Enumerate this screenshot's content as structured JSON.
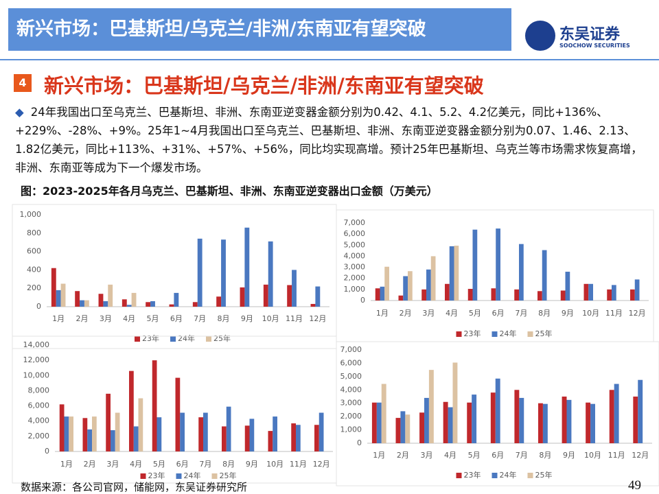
{
  "header": {
    "title": "新兴市场：巴基斯坦/乌克兰/非洲/东南亚有望突破",
    "logo_cn": "东吴证券",
    "logo_en": "SOOCHOW SECURITIES"
  },
  "section": {
    "number": "4",
    "title": "新兴市场：巴基斯坦/乌克兰/非洲/东南亚有望突破"
  },
  "bullet": "24年我国出口至乌克兰、巴基斯坦、非洲、东南亚逆变器金额分别为0.42、4.1、5.2、4.2亿美元，同比+136%、+229%、-28%、+9%。25年1~4月我国出口至乌克兰、巴基斯坦、非洲、东南亚逆变器金额分别为0.07、1.46、2.13、1.82亿美元，同比+113%、+31%、+57%、+56%，同比均实现高增。预计25年巴基斯坦、乌克兰等市场需求恢复高增，非洲、东南亚等成为下一个爆发市场。",
  "figure_caption": "图：2023-2025年各月乌克兰、巴基斯坦、非洲、东南亚逆变器出口金额（万美元）",
  "source": "数据来源：各公司官网，储能网，东吴证券研究所",
  "page_number": "49",
  "chart_data": [
    {
      "type": "bar",
      "grid": false,
      "categories": [
        "1月",
        "2月",
        "3月",
        "4月",
        "5月",
        "6月",
        "7月",
        "8月",
        "9月",
        "10月",
        "11月",
        "12月"
      ],
      "ylim": [
        0,
        1000
      ],
      "yticks": [
        0,
        200,
        400,
        600,
        800,
        {
          "value": 1000,
          "label": "1,000"
        }
      ],
      "series": [
        {
          "name": "23年",
          "color": "#c0282c",
          "values": [
            420,
            170,
            140,
            80,
            50,
            25,
            50,
            110,
            210,
            240,
            235,
            30
          ]
        },
        {
          "name": "24年",
          "color": "#4a78c0",
          "values": [
            180,
            70,
            60,
            20,
            60,
            150,
            740,
            730,
            860,
            710,
            400,
            220
          ]
        },
        {
          "name": "25年",
          "color": "#dcc2a2",
          "values": [
            250,
            70,
            240,
            150,
            null,
            null,
            null,
            null,
            null,
            null,
            null,
            null
          ]
        }
      ]
    },
    {
      "type": "bar",
      "grid": false,
      "categories": [
        "1月",
        "2月",
        "3月",
        "4月",
        "5月",
        "6月",
        "7月",
        "8月",
        "9月",
        "10月",
        "11月",
        "12月"
      ],
      "ylim": [
        0,
        7000
      ],
      "yticks": [
        0,
        {
          "value": 1000,
          "label": "1,000"
        },
        {
          "value": 2000,
          "label": "2,000"
        },
        {
          "value": 3000,
          "label": "3,000"
        },
        {
          "value": 4000,
          "label": "4,000"
        },
        {
          "value": 5000,
          "label": "5,000"
        },
        {
          "value": 6000,
          "label": "6,000"
        },
        {
          "value": 7000,
          "label": "7,000"
        }
      ],
      "series": [
        {
          "name": "23年",
          "color": "#c0282c",
          "values": [
            1100,
            450,
            1000,
            1500,
            1050,
            1100,
            1000,
            850,
            900,
            1500,
            1000,
            1000
          ]
        },
        {
          "name": "24年",
          "color": "#4a78c0",
          "values": [
            1250,
            2200,
            2800,
            4900,
            6400,
            6500,
            5100,
            4550,
            2600,
            1500,
            1400,
            1900
          ]
        },
        {
          "name": "25年",
          "color": "#dcc2a2",
          "values": [
            3050,
            2650,
            4000,
            4950,
            null,
            null,
            null,
            null,
            null,
            null,
            null,
            null
          ]
        }
      ]
    },
    {
      "type": "bar",
      "grid": false,
      "categories": [
        "1月",
        "2月",
        "3月",
        "4月",
        "5月",
        "6月",
        "7月",
        "8月",
        "9月",
        "10月",
        "11月",
        "12月"
      ],
      "ylim": [
        0,
        14000
      ],
      "yticks": [
        0,
        {
          "value": 2000,
          "label": "2,000"
        },
        {
          "value": 4000,
          "label": "4,000"
        },
        {
          "value": 6000,
          "label": "6,000"
        },
        {
          "value": 8000,
          "label": "8,000"
        },
        {
          "value": 10000,
          "label": "10,000"
        },
        {
          "value": 12000,
          "label": "12,000"
        },
        {
          "value": 14000,
          "label": "14,000"
        }
      ],
      "series": [
        {
          "name": "23年",
          "color": "#c0282c",
          "values": [
            6200,
            4400,
            7600,
            10600,
            12000,
            9700,
            4500,
            3300,
            3400,
            2700,
            3700,
            3500
          ]
        },
        {
          "name": "24年",
          "color": "#4a78c0",
          "values": [
            4600,
            2900,
            2800,
            3300,
            4500,
            5100,
            5100,
            5900,
            4300,
            4600,
            3500,
            5100
          ]
        },
        {
          "name": "25年",
          "color": "#dcc2a2",
          "values": [
            4600,
            4600,
            5100,
            7000,
            null,
            null,
            null,
            null,
            null,
            null,
            null,
            null
          ]
        }
      ]
    },
    {
      "type": "bar",
      "grid": false,
      "categories": [
        "1月",
        "2月",
        "3月",
        "4月",
        "5月",
        "6月",
        "7月",
        "8月",
        "9月",
        "10月",
        "11月",
        "12月"
      ],
      "ylim": [
        0,
        7000
      ],
      "yticks": [
        0,
        {
          "value": 1000,
          "label": "1,000"
        },
        {
          "value": 2000,
          "label": "2,000"
        },
        {
          "value": 3000,
          "label": "3,000"
        },
        {
          "value": 4000,
          "label": "4,000"
        },
        {
          "value": 5000,
          "label": "5,000"
        },
        {
          "value": 6000,
          "label": "6,000"
        },
        {
          "value": 7000,
          "label": "7,000"
        }
      ],
      "series": [
        {
          "name": "23年",
          "color": "#c0282c",
          "values": [
            3050,
            1900,
            2300,
            3100,
            3050,
            3800,
            4000,
            3000,
            3500,
            3050,
            4000,
            3500
          ]
        },
        {
          "name": "24年",
          "color": "#4a78c0",
          "values": [
            3050,
            2400,
            3400,
            2700,
            3650,
            4850,
            3400,
            2950,
            3250,
            2950,
            4450,
            4750
          ]
        },
        {
          "name": "25年",
          "color": "#dcc2a2",
          "values": [
            4450,
            2150,
            5500,
            6050,
            null,
            null,
            null,
            null,
            null,
            null,
            null,
            null
          ]
        }
      ]
    }
  ]
}
